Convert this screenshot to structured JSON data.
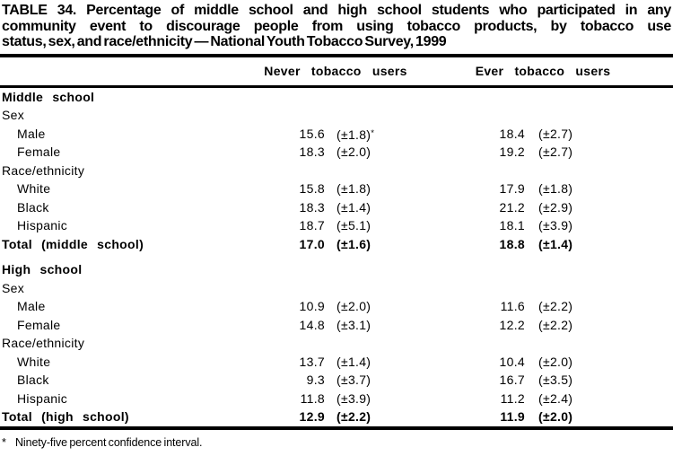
{
  "colors": {
    "text": "#000000",
    "background": "#ffffff",
    "rule": "#000000"
  },
  "title_lines": [
    "TABLE 34. Percentage of middle school and high school students who participated in any",
    "community event to discourage people from using tobacco products, by tobacco use",
    "status, sex, and race/ethnicity — National Youth Tobacco Survey, 1999"
  ],
  "columns": [
    "Never tobacco users",
    "Ever tobacco users"
  ],
  "rows": [
    {
      "label": "Middle school"
    },
    {
      "label": "Sex"
    },
    {
      "label": "Male",
      "never": "15.6",
      "never_ci": "(±1.8)",
      "never_sup": "*",
      "ever": "18.4",
      "ever_ci": "(±2.7)"
    },
    {
      "label": "Female",
      "never": "18.3",
      "never_ci": "(±2.0)",
      "ever": "19.2",
      "ever_ci": "(±2.7)"
    },
    {
      "label": "Race/ethnicity"
    },
    {
      "label": "White",
      "never": "15.8",
      "never_ci": "(±1.8)",
      "ever": "17.9",
      "ever_ci": "(±1.8)"
    },
    {
      "label": "Black",
      "never": "18.3",
      "never_ci": "(±1.4)",
      "ever": "21.2",
      "ever_ci": "(±2.9)"
    },
    {
      "label": "Hispanic",
      "never": "18.7",
      "never_ci": "(±5.1)",
      "ever": "18.1",
      "ever_ci": "(±3.9)"
    },
    {
      "label": "Total (middle school)",
      "never": "17.0",
      "never_ci": "(±1.6)",
      "ever": "18.8",
      "ever_ci": "(±1.4)"
    },
    {
      "label": "High school"
    },
    {
      "label": "Sex"
    },
    {
      "label": "Male",
      "never": "10.9",
      "never_ci": "(±2.0)",
      "ever": "11.6",
      "ever_ci": "(±2.2)"
    },
    {
      "label": "Female",
      "never": "14.8",
      "never_ci": "(±3.1)",
      "ever": "12.2",
      "ever_ci": "(±2.2)"
    },
    {
      "label": "Race/ethnicity"
    },
    {
      "label": "White",
      "never": "13.7",
      "never_ci": "(±1.4)",
      "ever": "10.4",
      "ever_ci": "(±2.0)"
    },
    {
      "label": "Black",
      "never": "9.3",
      "never_ci": "(±3.7)",
      "ever": "16.7",
      "ever_ci": "(±3.5)"
    },
    {
      "label": "Hispanic",
      "never": "11.8",
      "never_ci": "(±3.9)",
      "ever": "11.2",
      "ever_ci": "(±2.4)"
    },
    {
      "label": "Total (high school)",
      "never": "12.9",
      "never_ci": "(±2.2)",
      "ever": "11.9",
      "ever_ci": "(±2.0)"
    }
  ],
  "footnote": {
    "marker": "*",
    "text": "Ninety-five percent confidence interval."
  }
}
